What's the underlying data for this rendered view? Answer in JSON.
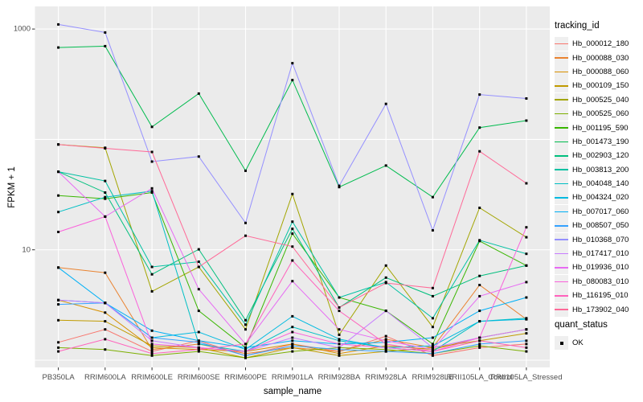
{
  "figure": {
    "bg": "#FFFFFF",
    "panel_bg": "#EBEBEB",
    "grid_color": "#FFFFFF",
    "tick_color": "#333333",
    "axis_text_color": "#4D4D4D"
  },
  "chart_data": {
    "type": "line",
    "title": "",
    "xlabel": "sample_name",
    "ylabel": "FPKM + 1",
    "y_scale": "log10",
    "ylim": [
      0.9,
      1430
    ],
    "grid": "on",
    "legend_position": "right",
    "point_shape": "square",
    "point_color": "#000000",
    "y_ticks": [
      {
        "label": "1000",
        "value": 1000
      },
      {
        "label": "10",
        "value": 10
      }
    ],
    "y_gridlines": [
      1,
      10,
      100,
      1000
    ],
    "categories": [
      "PB350LA",
      "RRIM600LA",
      "RRIM600LE",
      "RRIM600SE",
      "RRIM600PE",
      "RRIM901LA",
      "RRIM928BA",
      "RRIM928LA",
      "RRIM928LE",
      "RRII105LA_Control",
      "RRII105LA_Stressed"
    ],
    "series": [
      {
        "name": "Hb_000012_180",
        "color": "#F8766D",
        "values": [
          1.45,
          1.9,
          1.2,
          1.5,
          1.1,
          1.4,
          1.2,
          1.65,
          1.1,
          1.3,
          1.4
        ]
      },
      {
        "name": "Hb_000088_030",
        "color": "#EA8331",
        "values": [
          6.9,
          6.2,
          1.25,
          1.4,
          1.15,
          1.3,
          1.2,
          1.55,
          1.3,
          4.8,
          2.35
        ]
      },
      {
        "name": "Hb_000088_060",
        "color": "#D89000",
        "values": [
          3.5,
          2.7,
          1.3,
          1.25,
          1.2,
          1.4,
          1.15,
          1.35,
          1.25,
          1.6,
          1.9
        ]
      },
      {
        "name": "Hb_000109_150",
        "color": "#C09B00",
        "values": [
          2.3,
          2.25,
          1.35,
          1.3,
          1.05,
          1.3,
          1.1,
          1.2,
          1.3,
          1.5,
          1.75
        ]
      },
      {
        "name": "Hb_000525_040",
        "color": "#A3A500",
        "values": [
          90,
          84,
          4.2,
          7.0,
          1.9,
          32,
          1.7,
          7.2,
          2.0,
          24,
          13
        ]
      },
      {
        "name": "Hb_000525_060",
        "color": "#7CAE00",
        "values": [
          1.3,
          1.25,
          1.1,
          1.2,
          1.05,
          1.2,
          1.3,
          1.25,
          1.15,
          1.35,
          1.2
        ]
      },
      {
        "name": "Hb_001195_590",
        "color": "#39B600",
        "values": [
          31,
          29,
          33,
          2.8,
          1.3,
          14,
          3.7,
          2.8,
          1.4,
          12,
          7.2
        ]
      },
      {
        "name": "Hb_001473_190",
        "color": "#00BB4E",
        "values": [
          680,
          700,
          130,
          260,
          52,
          345,
          37,
          58,
          30,
          128,
          148
        ]
      },
      {
        "name": "Hb_002903_120",
        "color": "#00BF7D",
        "values": [
          51,
          33,
          6.0,
          10.1,
          2.3,
          15.5,
          3.0,
          5.6,
          3.8,
          5.8,
          7.2
        ]
      },
      {
        "name": "Hb_003813_200",
        "color": "#00C1A3",
        "values": [
          51,
          42,
          7.0,
          7.8,
          2.1,
          18,
          3.7,
          5.1,
          2.4,
          12.2,
          9.2
        ]
      },
      {
        "name": "Hb_004048_140",
        "color": "#00BFC4",
        "values": [
          22,
          30,
          34,
          1.4,
          1.2,
          2.0,
          1.5,
          1.3,
          1.2,
          2.25,
          2.4
        ]
      },
      {
        "name": "Hb_004324_020",
        "color": "#00BAE0",
        "values": [
          3.5,
          3.3,
          1.6,
          1.8,
          1.25,
          2.5,
          1.55,
          1.3,
          1.35,
          2.25,
          2.35
        ]
      },
      {
        "name": "Hb_007017_060",
        "color": "#00B0F6",
        "values": [
          6.9,
          3.3,
          1.85,
          1.5,
          1.3,
          1.5,
          1.4,
          1.45,
          1.6,
          2.8,
          3.7
        ]
      },
      {
        "name": "Hb_008507_050",
        "color": "#35A2FF",
        "values": [
          3.2,
          3.3,
          1.6,
          1.45,
          1.1,
          1.35,
          1.25,
          1.2,
          1.15,
          1.4,
          1.5
        ]
      },
      {
        "name": "Hb_010368_070",
        "color": "#9590FF",
        "values": [
          1100,
          930,
          63,
          70,
          17.5,
          490,
          38,
          210,
          15,
          255,
          235
        ]
      },
      {
        "name": "Hb_017417_010",
        "color": "#C77CFF",
        "values": [
          3.5,
          3.3,
          1.5,
          1.3,
          1.2,
          1.6,
          1.3,
          2.8,
          1.3,
          1.6,
          1.9
        ]
      },
      {
        "name": "Hb_019936_010",
        "color": "#E76BF3",
        "values": [
          51,
          20,
          36,
          4.4,
          1.4,
          5.2,
          1.9,
          1.5,
          1.25,
          3.8,
          5.1
        ]
      },
      {
        "name": "Hb_080083_010",
        "color": "#FA62DB",
        "values": [
          14.5,
          20,
          1.4,
          1.3,
          1.2,
          1.8,
          1.4,
          1.3,
          1.2,
          1.6,
          16
        ]
      },
      {
        "name": "Hb_116195_010",
        "color": "#FF62BC",
        "values": [
          1.2,
          1.55,
          1.15,
          1.25,
          1.4,
          8.0,
          2.8,
          1.4,
          1.2,
          1.5,
          1.3
        ]
      },
      {
        "name": "Hb_173902_040",
        "color": "#FF6A98",
        "values": [
          90,
          83,
          77,
          7.0,
          13.4,
          10.7,
          3.0,
          5.0,
          4.5,
          78,
          40
        ]
      }
    ]
  },
  "legend": {
    "tracking_title": "tracking_id",
    "quant_title": "quant_status",
    "quant_items": [
      {
        "label": "OK"
      }
    ]
  }
}
